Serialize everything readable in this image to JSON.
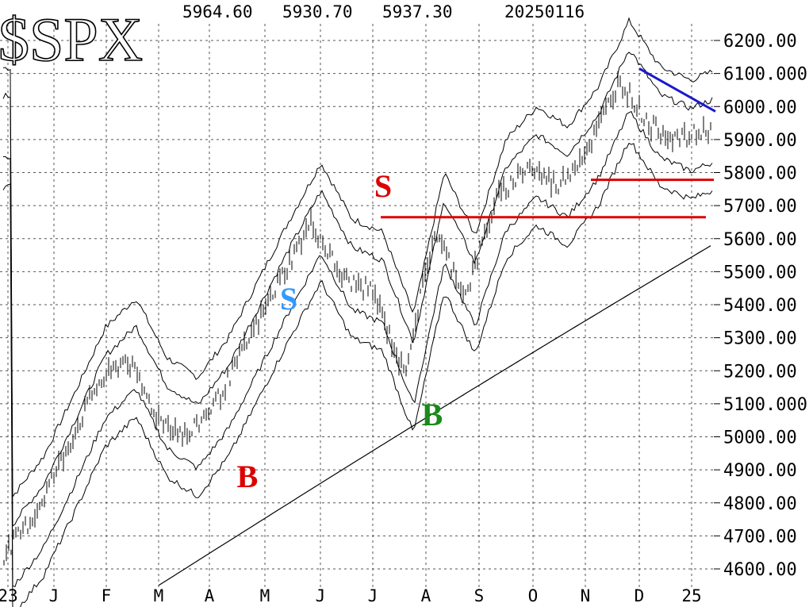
{
  "chart_data": {
    "type": "line",
    "title": "$SPX",
    "header": {
      "values": [
        "5964.60",
        "5930.70",
        "5937.30"
      ],
      "date": "20250116"
    },
    "x_ticks": [
      "23",
      "J",
      "F",
      "M",
      "A",
      "M",
      "J",
      "J",
      "A",
      "S",
      "O",
      "N",
      "D",
      "25"
    ],
    "y_ticks": [
      "6200.00",
      "6100.000",
      "6000.00",
      "5900.00",
      "5800.00",
      "5700.00",
      "5600.00",
      "5500.00",
      "5400.00",
      "5300.00",
      "5200.00",
      "5100.000",
      "5000.00",
      "4900.00",
      "4800.00",
      "4700.00",
      "4600.00"
    ],
    "ylim": [
      4570,
      6235
    ],
    "series": [
      {
        "name": "",
        "values": [
          [
            "23",
            4640
          ],
          [
            "J",
            4760
          ],
          [
            "F",
            4950
          ],
          [
            "M",
            5150
          ],
          [
            "A",
            5240
          ],
          [
            "A",
            5060
          ],
          [
            "M",
            5000
          ],
          [
            "M",
            5120
          ],
          [
            "J",
            5300
          ],
          [
            "J",
            5480
          ],
          [
            "J",
            5650
          ],
          [
            "J",
            5480
          ],
          [
            "A",
            5440
          ],
          [
            "A",
            5190
          ],
          [
            "S",
            5620
          ],
          [
            "S",
            5430
          ],
          [
            "O",
            5720
          ],
          [
            "O",
            5820
          ],
          [
            "N",
            5760
          ],
          [
            "N",
            5880
          ],
          [
            "D",
            6080
          ],
          [
            "D",
            5940
          ],
          [
            "25",
            5900
          ],
          [
            "25",
            5937
          ]
        ]
      }
    ],
    "annotations": [
      {
        "text": "S",
        "color": "#dd0000",
        "at": [
          "J",
          5780
        ]
      },
      {
        "text": "S",
        "color": "#3399ff",
        "at": [
          "M",
          5420
        ]
      },
      {
        "text": "B",
        "color": "#dd0000",
        "at": [
          "A",
          4880
        ]
      },
      {
        "text": "B",
        "color": "#1a8a1a",
        "at": [
          "A",
          5060
        ]
      }
    ],
    "horizontal_lines": [
      {
        "y": 5665,
        "color": "#dd0000"
      },
      {
        "y": 5778,
        "color": "#dd0000"
      }
    ],
    "downtrend_line": {
      "color": "#1a1acc",
      "from": 6115,
      "to": 5985
    },
    "grid": true
  }
}
